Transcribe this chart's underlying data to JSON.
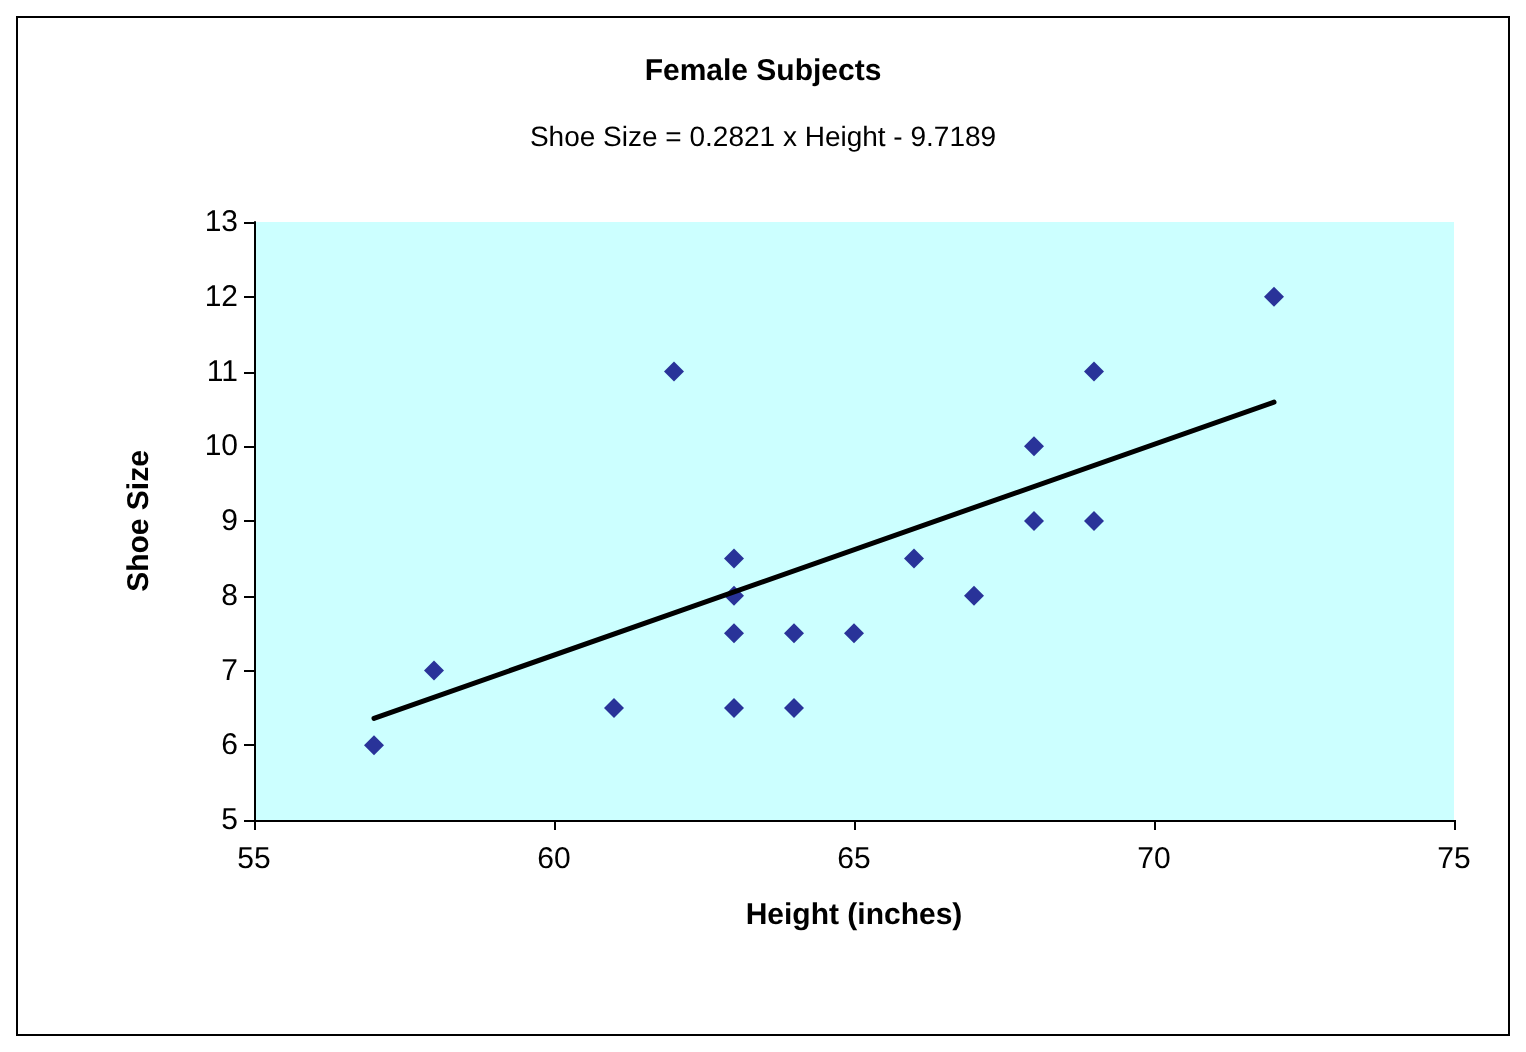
{
  "chart_data": {
    "type": "scatter",
    "title": "Female Subjects",
    "subtitle": "Shoe Size = 0.2821 x Height - 9.7189",
    "xlabel": "Height (inches)",
    "ylabel": "Shoe Size",
    "xlim": [
      55,
      75
    ],
    "xticks": [
      55,
      60,
      65,
      70,
      75
    ],
    "ylim": [
      5,
      13
    ],
    "yticks": [
      5,
      6,
      7,
      8,
      9,
      10,
      11,
      12,
      13
    ],
    "grid": false,
    "marker": "diamond",
    "series": [
      {
        "color": "#000080",
        "x": [
          57,
          58,
          61,
          62,
          63,
          63,
          63,
          63,
          64,
          64,
          65,
          66,
          67,
          68,
          68,
          69,
          69,
          72
        ],
        "values": [
          6,
          7,
          6.5,
          11,
          8.5,
          8,
          7.5,
          6.5,
          7.5,
          6.5,
          7.5,
          8.5,
          8,
          10,
          9,
          11,
          9,
          12
        ]
      },
      {
        "type": "line",
        "color": "#000000",
        "marker": "none",
        "line_style": "solid",
        "x": [
          57,
          72
        ],
        "values": [
          6.36,
          10.59
        ]
      }
    ]
  }
}
